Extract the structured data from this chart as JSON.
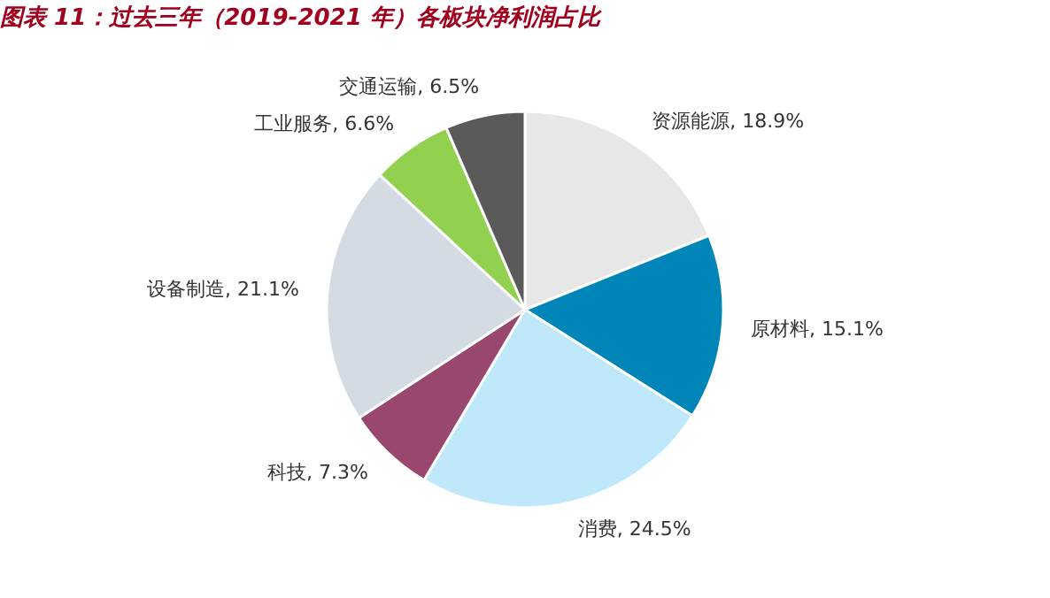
{
  "chart_data": {
    "type": "pie",
    "title": "图表 11：过去三年（2019-2021 年）各板块净利润占比",
    "categories": [
      "资源能源",
      "原材料",
      "消费",
      "科技",
      "设备制造",
      "工业服务",
      "交通运输"
    ],
    "values": [
      18.9,
      15.1,
      24.5,
      7.3,
      21.1,
      6.6,
      6.5
    ],
    "value_labels": [
      "18.9%",
      "15.1%",
      "24.5%",
      "7.3%",
      "21.1%",
      "6.6%",
      "6.5%"
    ],
    "colors": [
      "#e7e7e7",
      "#0085b9",
      "#bfe9fb",
      "#99476f",
      "#d5dbe3",
      "#92d050",
      "#5a5a5a"
    ],
    "legend": false
  }
}
